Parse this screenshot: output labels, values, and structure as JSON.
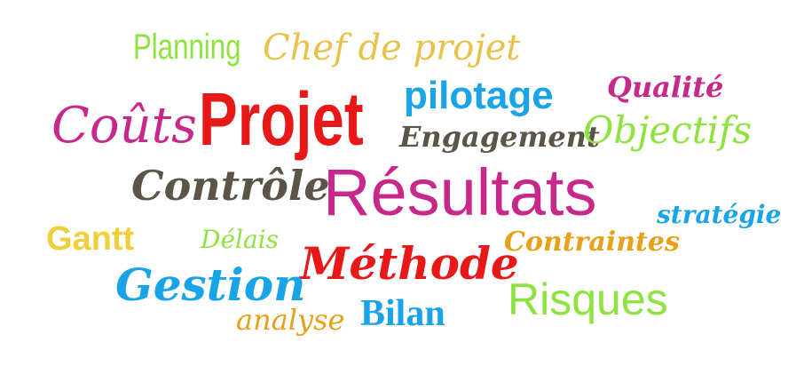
{
  "words": {
    "planning": {
      "text": "Planning",
      "color": "#8ee33f"
    },
    "chef_de_projet": {
      "text": "Chef de projet",
      "color": "#e8c24a"
    },
    "projet": {
      "text": "Projet",
      "color": "#e81818"
    },
    "pilotage": {
      "text": "pilotage",
      "color": "#1aa4e8"
    },
    "qualite": {
      "text": "Qualité",
      "color": "#c8288a"
    },
    "couts": {
      "text": "Coûts",
      "color": "#c8288a"
    },
    "engagement": {
      "text": "Engagement",
      "color": "#5a5548"
    },
    "objectifs": {
      "text": "Objectifs",
      "color": "#8ee33f"
    },
    "controle": {
      "text": "Contrôle",
      "color": "#5a5548"
    },
    "resultats": {
      "text": "Résultats",
      "color": "#c8288a"
    },
    "strategie": {
      "text": "stratégie",
      "color": "#1aa4e8"
    },
    "gantt": {
      "text": "Gantt",
      "color": "#f0cf3a"
    },
    "delais": {
      "text": "Délais",
      "color": "#8ee33f"
    },
    "contraintes": {
      "text": "Contraintes",
      "color": "#e8a018"
    },
    "methode": {
      "text": "Méthode",
      "color": "#e81818"
    },
    "gestion": {
      "text": "Gestion",
      "color": "#1aa4e8"
    },
    "risques": {
      "text": "Risques",
      "color": "#8ee33f"
    },
    "analyse": {
      "text": "analyse",
      "color": "#e8a018"
    },
    "bilan": {
      "text": "Bilan",
      "color": "#1aa4e8"
    }
  }
}
